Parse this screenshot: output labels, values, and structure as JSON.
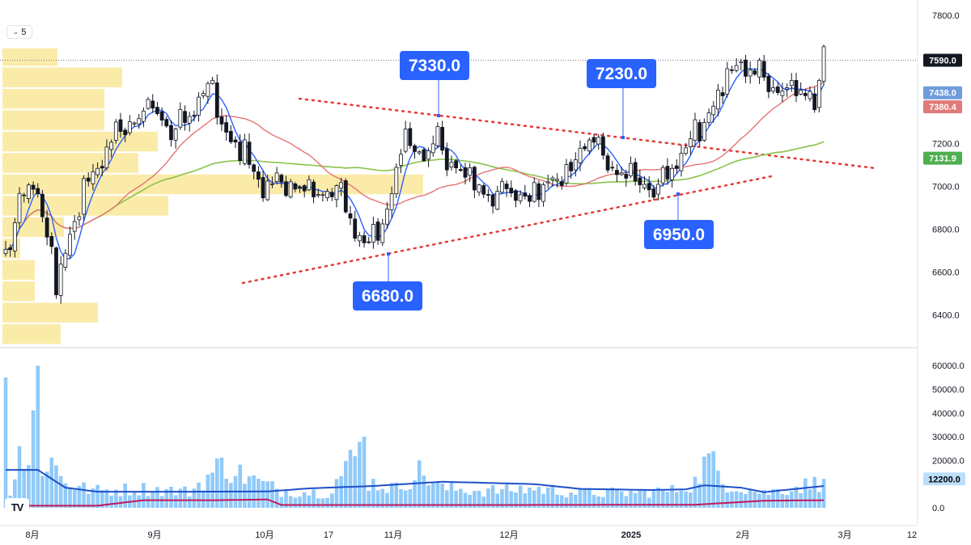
{
  "interval": {
    "value": "5",
    "chevron_icon": "chevron-down-icon"
  },
  "logo": {
    "text": "TV",
    "icon": "tradingview-logo-icon"
  },
  "colors": {
    "up": "#ffffff",
    "down": "#131722",
    "ma_short": "#2962ff",
    "ma_mid": "#e57373",
    "ma_long": "#8bc34a",
    "volume_bar": "#90caf9",
    "vol_ma_blue": "#1e50c8",
    "vol_ma_red": "#c2185b",
    "annotation_bg": "#2962ff",
    "trendline": "#e53935",
    "volume_profile": "#fbe9a0"
  },
  "chart_data": [
    {
      "type": "candlestick",
      "x_labels": [
        "8月",
        "9月",
        "10月",
        "17",
        "11月",
        "12月",
        "2025",
        "2月",
        "3月",
        "12"
      ],
      "price_axis": {
        "ticks": [
          "7800.0",
          "7600.0",
          "7200.0",
          "7000.0",
          "6800.0",
          "6600.0",
          "6400.0"
        ],
        "ylim": [
          6260,
          7860
        ]
      },
      "last_price": "7590.0",
      "ma_values": {
        "ma_short": "7438.0",
        "ma_mid": "7380.4",
        "ma_long": "7131.9"
      },
      "annotations": [
        {
          "label": "7330.0",
          "price": 7330
        },
        {
          "label": "7230.0",
          "price": 7230
        },
        {
          "label": "6950.0",
          "price": 6950
        },
        {
          "label": "6680.0",
          "price": 6680
        }
      ],
      "anchors": [
        [
          0,
          6700
        ],
        [
          4,
          6950
        ],
        [
          6,
          7050
        ],
        [
          9,
          6750
        ],
        [
          11,
          6550
        ],
        [
          13,
          6700
        ],
        [
          16,
          6920
        ],
        [
          20,
          7100
        ],
        [
          24,
          7250
        ],
        [
          28,
          7300
        ],
        [
          32,
          7380
        ],
        [
          36,
          7250
        ],
        [
          40,
          7330
        ],
        [
          44,
          7480
        ],
        [
          48,
          7250
        ],
        [
          52,
          7150
        ],
        [
          56,
          7000
        ],
        [
          60,
          7030
        ],
        [
          64,
          7000
        ],
        [
          68,
          6950
        ],
        [
          72,
          7000
        ],
        [
          75,
          6850
        ],
        [
          78,
          6730
        ],
        [
          81,
          6780
        ],
        [
          84,
          6950
        ],
        [
          86,
          7220
        ],
        [
          90,
          7150
        ],
        [
          94,
          7200
        ],
        [
          98,
          7080
        ],
        [
          102,
          7000
        ],
        [
          106,
          6960
        ],
        [
          110,
          6980
        ],
        [
          114,
          6950
        ],
        [
          118,
          7010
        ],
        [
          122,
          7050
        ],
        [
          126,
          7220
        ],
        [
          128,
          7200
        ],
        [
          132,
          7080
        ],
        [
          136,
          7040
        ],
        [
          140,
          6990
        ],
        [
          144,
          7050
        ],
        [
          148,
          7180
        ],
        [
          152,
          7300
        ],
        [
          156,
          7480
        ],
        [
          160,
          7600
        ],
        [
          164,
          7520
        ],
        [
          168,
          7450
        ],
        [
          172,
          7440
        ],
        [
          176,
          7420
        ],
        [
          178,
          7590
        ]
      ]
    },
    {
      "type": "bar",
      "name": "volume",
      "axis": {
        "ticks": [
          "60000.0",
          "50000.0",
          "40000.0",
          "30000.0",
          "20000.0",
          "0.0"
        ],
        "ylim": [
          0,
          62000
        ]
      },
      "last_volume": "12200.0",
      "anchors": [
        [
          0,
          55000
        ],
        [
          1,
          9000
        ],
        [
          3,
          25000
        ],
        [
          5,
          20000
        ],
        [
          7,
          60000
        ],
        [
          8,
          20000
        ],
        [
          10,
          22000
        ],
        [
          12,
          15000
        ],
        [
          15,
          10000
        ],
        [
          20,
          8000
        ],
        [
          30,
          9000
        ],
        [
          40,
          7500
        ],
        [
          47,
          20000
        ],
        [
          55,
          12000
        ],
        [
          60,
          8000
        ],
        [
          70,
          7000
        ],
        [
          78,
          30000
        ],
        [
          79,
          12000
        ],
        [
          85,
          9000
        ],
        [
          90,
          17000
        ],
        [
          95,
          9000
        ],
        [
          105,
          8000
        ],
        [
          115,
          9000
        ],
        [
          125,
          7000
        ],
        [
          135,
          7000
        ],
        [
          145,
          8000
        ],
        [
          150,
          12000
        ],
        [
          153,
          24000
        ],
        [
          156,
          12000
        ],
        [
          165,
          7000
        ],
        [
          178,
          12200
        ]
      ],
      "vol_ma_blue_anchors": [
        [
          0,
          16000
        ],
        [
          7,
          16000
        ],
        [
          13,
          8500
        ],
        [
          20,
          6800
        ],
        [
          40,
          6800
        ],
        [
          57,
          6900
        ],
        [
          66,
          8200
        ],
        [
          80,
          9200
        ],
        [
          95,
          11000
        ],
        [
          115,
          10000
        ],
        [
          125,
          8000
        ],
        [
          140,
          7500
        ],
        [
          148,
          7800
        ],
        [
          152,
          9500
        ],
        [
          160,
          8500
        ],
        [
          165,
          6600
        ],
        [
          178,
          9200
        ]
      ],
      "vol_ma_red_anchors": [
        [
          0,
          900
        ],
        [
          20,
          900
        ],
        [
          30,
          3200
        ],
        [
          45,
          3200
        ],
        [
          57,
          3500
        ],
        [
          60,
          1200
        ],
        [
          110,
          1200
        ],
        [
          150,
          1300
        ],
        [
          165,
          3000
        ],
        [
          178,
          3200
        ]
      ]
    }
  ]
}
